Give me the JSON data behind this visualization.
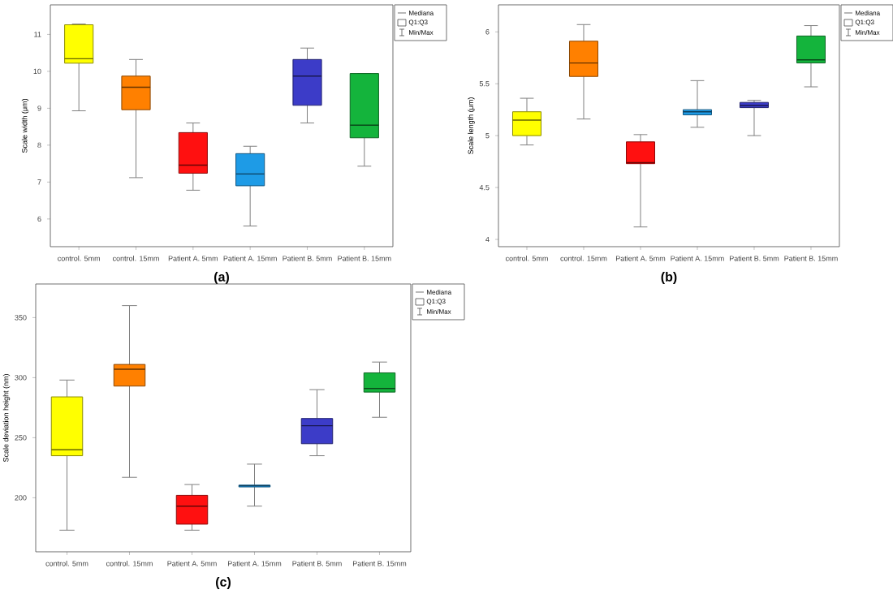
{
  "chart_data": [
    {
      "type": "box",
      "title": "(a)",
      "ylabel": "Scale width (μm)",
      "categories": [
        "control. 5mm",
        "control. 15mm",
        "Patient A. 5mm",
        "Patient A. 15mm",
        "Patient B. 5mm",
        "Patient B. 15mm"
      ],
      "colors": [
        "#ffff00",
        "#ff8000",
        "#ff1010",
        "#1e9be6",
        "#3c3cc8",
        "#14b43c"
      ],
      "ylim": [
        5.25,
        11.8
      ],
      "yticks": [
        6,
        7,
        8,
        9,
        10,
        11
      ],
      "grid": false,
      "annotations": [
        "Mediana",
        "Q1:Q3",
        "Min/Max"
      ],
      "boxes": [
        {
          "low": 8.93,
          "q1": 10.22,
          "median": 10.34,
          "q3": 11.26,
          "high": 11.28
        },
        {
          "low": 7.12,
          "q1": 8.96,
          "median": 9.57,
          "q3": 9.87,
          "high": 10.32
        },
        {
          "low": 6.78,
          "q1": 7.24,
          "median": 7.46,
          "q3": 8.34,
          "high": 8.6
        },
        {
          "low": 5.81,
          "q1": 6.9,
          "median": 7.22,
          "q3": 7.77,
          "high": 7.97
        },
        {
          "low": 8.6,
          "q1": 9.08,
          "median": 9.87,
          "q3": 10.32,
          "high": 10.63
        },
        {
          "low": 7.43,
          "q1": 8.2,
          "median": 8.54,
          "q3": 9.94,
          "high": 9.94
        }
      ]
    },
    {
      "type": "box",
      "title": "(b)",
      "ylabel": "Scale length (μm)",
      "categories": [
        "control. 5mm",
        "control. 15mm",
        "Patient A. 5mm",
        "Patient A. 15mm",
        "Patient B. 5mm",
        "Patient B. 15mm"
      ],
      "colors": [
        "#ffff00",
        "#ff8000",
        "#ff1010",
        "#1e9be6",
        "#3c3cc8",
        "#14b43c"
      ],
      "ylim": [
        3.93,
        6.26
      ],
      "yticks": [
        4,
        4.5,
        5,
        5.5,
        6
      ],
      "grid": false,
      "annotations": [
        "Mediana",
        "Q1:Q3",
        "Min/Max"
      ],
      "boxes": [
        {
          "low": 4.91,
          "q1": 5.0,
          "median": 5.15,
          "q3": 5.23,
          "high": 5.36
        },
        {
          "low": 5.16,
          "q1": 5.57,
          "median": 5.7,
          "q3": 5.91,
          "high": 6.07
        },
        {
          "low": 4.12,
          "q1": 4.73,
          "median": 4.74,
          "q3": 4.94,
          "high": 5.01
        },
        {
          "low": 5.08,
          "q1": 5.2,
          "median": 5.23,
          "q3": 5.25,
          "high": 5.53
        },
        {
          "low": 5.0,
          "q1": 5.27,
          "median": 5.29,
          "q3": 5.32,
          "high": 5.34
        },
        {
          "low": 5.47,
          "q1": 5.7,
          "median": 5.73,
          "q3": 5.96,
          "high": 6.06
        }
      ]
    },
    {
      "type": "box",
      "title": "(c)",
      "ylabel": "Scale deviation height (nm)",
      "categories": [
        "control. 5mm",
        "control. 15mm",
        "Patient A. 5mm",
        "Patient A. 15mm",
        "Patient B. 5mm",
        "Patient B. 15mm"
      ],
      "colors": [
        "#ffff00",
        "#ff8000",
        "#ff1010",
        "#1e9be6",
        "#3c3cc8",
        "#14b43c"
      ],
      "ylim": [
        155,
        378
      ],
      "yticks": [
        200,
        250,
        300,
        350
      ],
      "grid": false,
      "annotations": [
        "Mediana",
        "Q1:Q3",
        "Min/Max"
      ],
      "boxes": [
        {
          "low": 173,
          "q1": 235,
          "median": 240,
          "q3": 284,
          "high": 298
        },
        {
          "low": 217,
          "q1": 293,
          "median": 307,
          "q3": 311,
          "high": 360
        },
        {
          "low": 173,
          "q1": 178,
          "median": 193,
          "q3": 202,
          "high": 211
        },
        {
          "low": 193,
          "q1": 209,
          "median": 210,
          "q3": 210.5,
          "high": 228
        },
        {
          "low": 235,
          "q1": 245,
          "median": 260,
          "q3": 266,
          "high": 290
        },
        {
          "low": 267,
          "q1": 288,
          "median": 291,
          "q3": 304,
          "high": 313
        }
      ]
    }
  ]
}
